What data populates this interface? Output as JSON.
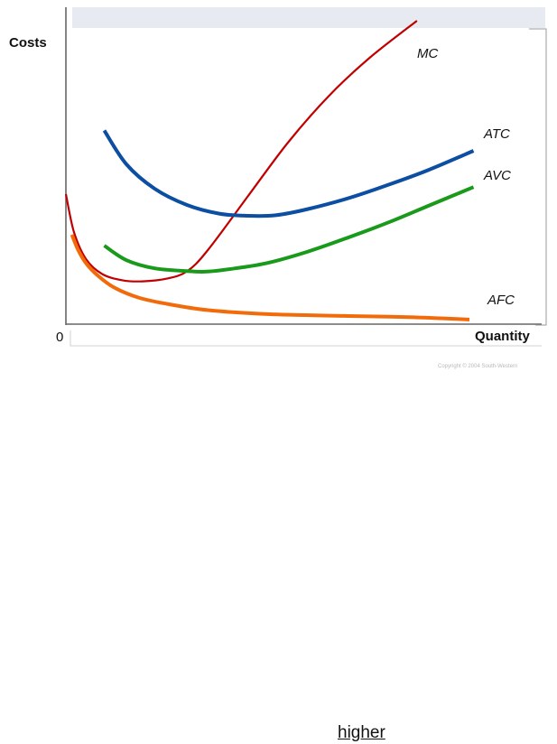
{
  "chart_data": {
    "type": "line",
    "ylabel": "Costs",
    "xlabel": "Quantity",
    "origin_label": "0",
    "copyright": "Copyright © 2004 South-Western",
    "grid": false,
    "xlim": [
      0,
      100
    ],
    "ylim": [
      0,
      100
    ],
    "series": [
      {
        "name": "MC",
        "color": "#c00000",
        "x": [
          0,
          2,
          5,
          9,
          14,
          19,
          25,
          30,
          35,
          45,
          55,
          65,
          75,
          87
        ],
        "y": [
          48,
          34,
          24,
          18.5,
          16.2,
          15.8,
          16.8,
          19.5,
          27,
          47,
          67,
          84,
          98,
          112
        ]
      },
      {
        "name": "ATC",
        "color": "#0b4ea2",
        "x": [
          9.5,
          15,
          22,
          30,
          38,
          45,
          52,
          60,
          70,
          80,
          90,
          101
        ],
        "y": [
          71.5,
          59,
          50,
          44,
          40.8,
          40,
          40.2,
          42.5,
          46.5,
          51.5,
          57,
          64
        ]
      },
      {
        "name": "AVC",
        "color": "#1a9a1a",
        "x": [
          9.5,
          15,
          22,
          30,
          35,
          42,
          50,
          60,
          70,
          80,
          90,
          101
        ],
        "y": [
          29,
          23.6,
          20.6,
          19.6,
          19.4,
          20.6,
          22.6,
          26.8,
          32,
          37.6,
          43.8,
          50.6
        ]
      },
      {
        "name": "AFC",
        "color": "#f26b0a",
        "x": [
          1.5,
          3,
          5,
          8,
          12,
          18,
          25,
          35,
          50,
          70,
          85,
          100
        ],
        "y": [
          33,
          27.5,
          22.5,
          17.8,
          13.5,
          9.8,
          7.5,
          5.2,
          3.7,
          3,
          2.6,
          1.7
        ]
      }
    ]
  },
  "bottom_note": "higher"
}
